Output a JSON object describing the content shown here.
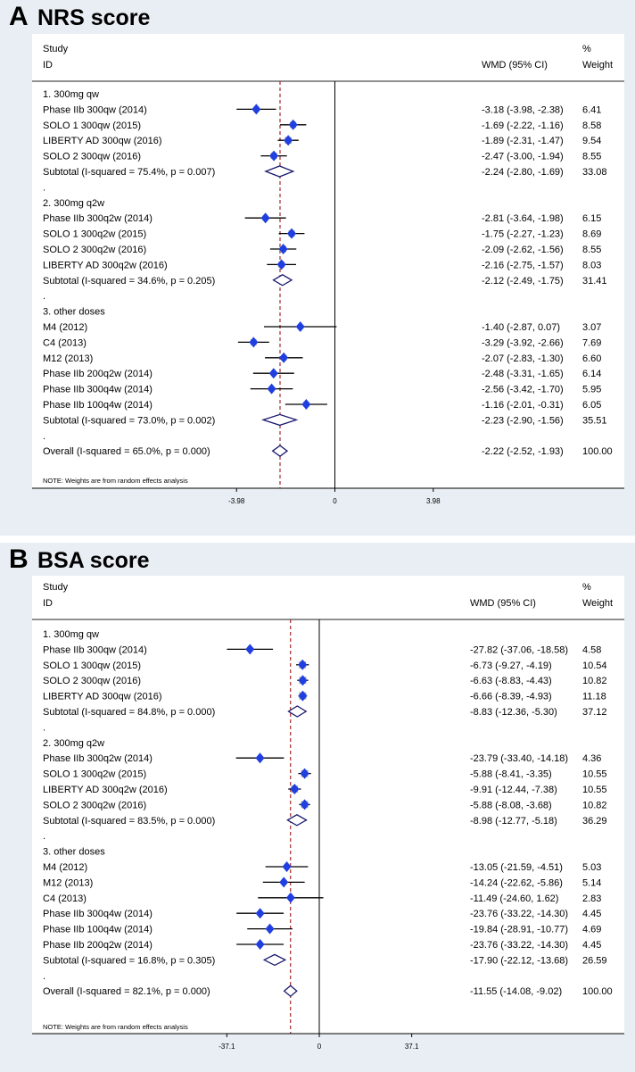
{
  "chart_data": [
    {
      "type": "forest",
      "panel_letter": "A",
      "title": "NRS score",
      "header": {
        "study": "Study",
        "id": "ID",
        "wmd": "WMD (95% CI)",
        "pct": "%",
        "weight": "Weight"
      },
      "axis": {
        "ticks": [
          {
            "value": -3.98,
            "label": "-3.98"
          },
          {
            "value": 0,
            "label": "0"
          },
          {
            "value": 3.98,
            "label": "3.98"
          }
        ],
        "xlim": [
          -7.2,
          7.2
        ]
      },
      "overall_effect": -2.22,
      "note": "NOTE: Weights are from random effects analysis",
      "rows": [
        {
          "kind": "group",
          "label": "1. 300mg qw"
        },
        {
          "kind": "study",
          "label": "Phase IIb 300qw (2014)",
          "est": -3.18,
          "lo": -3.98,
          "hi": -2.38,
          "weight": 6.41,
          "ci_text": "-3.18 (-3.98, -2.38)",
          "weight_text": "6.41"
        },
        {
          "kind": "study",
          "label": "SOLO 1 300qw (2015)",
          "est": -1.69,
          "lo": -2.22,
          "hi": -1.16,
          "weight": 8.58,
          "ci_text": "-1.69 (-2.22, -1.16)",
          "weight_text": "8.58"
        },
        {
          "kind": "study",
          "label": "LIBERTY AD 300qw (2016)",
          "est": -1.89,
          "lo": -2.31,
          "hi": -1.47,
          "weight": 9.54,
          "ci_text": "-1.89 (-2.31, -1.47)",
          "weight_text": "9.54"
        },
        {
          "kind": "study",
          "label": "SOLO 2 300qw (2016)",
          "est": -2.47,
          "lo": -3.0,
          "hi": -1.94,
          "weight": 8.55,
          "ci_text": "-2.47 (-3.00, -1.94)",
          "weight_text": "8.55"
        },
        {
          "kind": "subtotal",
          "label": "Subtotal  (I-squared = 75.4%, p = 0.007)",
          "est": -2.24,
          "lo": -2.8,
          "hi": -1.69,
          "ci_text": "-2.24 (-2.80, -1.69)",
          "weight_text": "33.08"
        },
        {
          "kind": "dot",
          "label": "."
        },
        {
          "kind": "group",
          "label": "2. 300mg q2w"
        },
        {
          "kind": "study",
          "label": "Phase IIb 300q2w (2014)",
          "est": -2.81,
          "lo": -3.64,
          "hi": -1.98,
          "weight": 6.15,
          "ci_text": "-2.81 (-3.64, -1.98)",
          "weight_text": "6.15"
        },
        {
          "kind": "study",
          "label": "SOLO 1 300q2w (2015)",
          "est": -1.75,
          "lo": -2.27,
          "hi": -1.23,
          "weight": 8.69,
          "ci_text": "-1.75 (-2.27, -1.23)",
          "weight_text": "8.69"
        },
        {
          "kind": "study",
          "label": "SOLO 2 300q2w (2016)",
          "est": -2.09,
          "lo": -2.62,
          "hi": -1.56,
          "weight": 8.55,
          "ci_text": "-2.09 (-2.62, -1.56)",
          "weight_text": "8.55"
        },
        {
          "kind": "study",
          "label": "LIBERTY AD 300q2w (2016)",
          "est": -2.16,
          "lo": -2.75,
          "hi": -1.57,
          "weight": 8.03,
          "ci_text": "-2.16 (-2.75, -1.57)",
          "weight_text": "8.03"
        },
        {
          "kind": "subtotal",
          "label": "Subtotal  (I-squared = 34.6%, p = 0.205)",
          "est": -2.12,
          "lo": -2.49,
          "hi": -1.75,
          "ci_text": "-2.12 (-2.49, -1.75)",
          "weight_text": "31.41"
        },
        {
          "kind": "dot",
          "label": "."
        },
        {
          "kind": "group",
          "label": "3. other doses"
        },
        {
          "kind": "study",
          "label": "M4 (2012)",
          "est": -1.4,
          "lo": -2.87,
          "hi": 0.07,
          "weight": 3.07,
          "ci_text": "-1.40 (-2.87, 0.07)",
          "weight_text": "3.07"
        },
        {
          "kind": "study",
          "label": "C4 (2013)",
          "est": -3.29,
          "lo": -3.92,
          "hi": -2.66,
          "weight": 7.69,
          "ci_text": "-3.29 (-3.92, -2.66)",
          "weight_text": "7.69"
        },
        {
          "kind": "study",
          "label": "M12 (2013)",
          "est": -2.07,
          "lo": -2.83,
          "hi": -1.3,
          "weight": 6.6,
          "ci_text": "-2.07 (-2.83, -1.30)",
          "weight_text": "6.60"
        },
        {
          "kind": "study",
          "label": "Phase IIb 200q2w (2014)",
          "est": -2.48,
          "lo": -3.31,
          "hi": -1.65,
          "weight": 6.14,
          "ci_text": "-2.48 (-3.31, -1.65)",
          "weight_text": "6.14"
        },
        {
          "kind": "study",
          "label": "Phase IIb 300q4w (2014)",
          "est": -2.56,
          "lo": -3.42,
          "hi": -1.7,
          "weight": 5.95,
          "ci_text": "-2.56 (-3.42, -1.70)",
          "weight_text": "5.95"
        },
        {
          "kind": "study",
          "label": "Phase IIb 100q4w (2014)",
          "est": -1.16,
          "lo": -2.01,
          "hi": -0.31,
          "weight": 6.05,
          "ci_text": "-1.16 (-2.01, -0.31)",
          "weight_text": "6.05"
        },
        {
          "kind": "subtotal",
          "label": "Subtotal  (I-squared = 73.0%, p = 0.002)",
          "est": -2.23,
          "lo": -2.9,
          "hi": -1.56,
          "ci_text": "-2.23 (-2.90, -1.56)",
          "weight_text": "35.51"
        },
        {
          "kind": "dot",
          "label": "."
        },
        {
          "kind": "overall",
          "label": "Overall  (I-squared = 65.0%, p = 0.000)",
          "est": -2.22,
          "lo": -2.52,
          "hi": -1.93,
          "ci_text": "-2.22 (-2.52, -1.93)",
          "weight_text": "100.00"
        }
      ]
    },
    {
      "type": "forest",
      "panel_letter": "B",
      "title": "BSA score",
      "header": {
        "study": "Study",
        "id": "ID",
        "wmd": "WMD (95% CI)",
        "pct": "%",
        "weight": "Weight"
      },
      "axis": {
        "ticks": [
          {
            "value": -37.1,
            "label": "-37.1"
          },
          {
            "value": 0,
            "label": "0"
          },
          {
            "value": 37.1,
            "label": "37.1"
          }
        ],
        "xlim": [
          -68,
          68
        ]
      },
      "overall_effect": -11.55,
      "note": "NOTE: Weights are from random effects analysis",
      "rows": [
        {
          "kind": "group",
          "label": "1. 300mg qw"
        },
        {
          "kind": "study",
          "label": "Phase IIb 300qw (2014)",
          "est": -27.82,
          "lo": -37.06,
          "hi": -18.58,
          "weight": 4.58,
          "ci_text": "-27.82 (-37.06, -18.58)",
          "weight_text": "4.58"
        },
        {
          "kind": "study",
          "label": "SOLO 1 300qw (2015)",
          "est": -6.73,
          "lo": -9.27,
          "hi": -4.19,
          "weight": 10.54,
          "ci_text": "-6.73 (-9.27, -4.19)",
          "weight_text": "10.54"
        },
        {
          "kind": "study",
          "label": "SOLO 2 300qw (2016)",
          "est": -6.63,
          "lo": -8.83,
          "hi": -4.43,
          "weight": 10.82,
          "ci_text": "-6.63 (-8.83, -4.43)",
          "weight_text": "10.82"
        },
        {
          "kind": "study",
          "label": "LIBERTY AD 300qw (2016)",
          "est": -6.66,
          "lo": -8.39,
          "hi": -4.93,
          "weight": 11.18,
          "ci_text": "-6.66 (-8.39, -4.93)",
          "weight_text": "11.18"
        },
        {
          "kind": "subtotal",
          "label": "Subtotal  (I-squared = 84.8%, p = 0.000)",
          "est": -8.83,
          "lo": -12.36,
          "hi": -5.3,
          "ci_text": "-8.83 (-12.36, -5.30)",
          "weight_text": "37.12"
        },
        {
          "kind": "dot",
          "label": "."
        },
        {
          "kind": "group",
          "label": "2. 300mg q2w"
        },
        {
          "kind": "study",
          "label": "Phase IIb 300q2w (2014)",
          "est": -23.79,
          "lo": -33.4,
          "hi": -14.18,
          "weight": 4.36,
          "ci_text": "-23.79 (-33.40, -14.18)",
          "weight_text": "4.36"
        },
        {
          "kind": "study",
          "label": "SOLO 1 300q2w (2015)",
          "est": -5.88,
          "lo": -8.41,
          "hi": -3.35,
          "weight": 10.55,
          "ci_text": "-5.88 (-8.41, -3.35)",
          "weight_text": "10.55"
        },
        {
          "kind": "study",
          "label": "LIBERTY AD 300q2w (2016)",
          "est": -9.91,
          "lo": -12.44,
          "hi": -7.38,
          "weight": 10.55,
          "ci_text": "-9.91 (-12.44, -7.38)",
          "weight_text": "10.55"
        },
        {
          "kind": "study",
          "label": "SOLO 2 300q2w (2016)",
          "est": -5.88,
          "lo": -8.08,
          "hi": -3.68,
          "weight": 10.82,
          "ci_text": "-5.88 (-8.08, -3.68)",
          "weight_text": "10.82"
        },
        {
          "kind": "subtotal",
          "label": "Subtotal  (I-squared = 83.5%, p = 0.000)",
          "est": -8.98,
          "lo": -12.77,
          "hi": -5.18,
          "ci_text": "-8.98 (-12.77, -5.18)",
          "weight_text": "36.29"
        },
        {
          "kind": "dot",
          "label": "."
        },
        {
          "kind": "group",
          "label": "3. other doses"
        },
        {
          "kind": "study",
          "label": "M4 (2012)",
          "est": -13.05,
          "lo": -21.59,
          "hi": -4.51,
          "weight": 5.03,
          "ci_text": "-13.05 (-21.59, -4.51)",
          "weight_text": "5.03"
        },
        {
          "kind": "study",
          "label": "M12 (2013)",
          "est": -14.24,
          "lo": -22.62,
          "hi": -5.86,
          "weight": 5.14,
          "ci_text": "-14.24 (-22.62, -5.86)",
          "weight_text": "5.14"
        },
        {
          "kind": "study",
          "label": "C4 (2013)",
          "est": -11.49,
          "lo": -24.6,
          "hi": 1.62,
          "weight": 2.83,
          "ci_text": "-11.49 (-24.60, 1.62)",
          "weight_text": "2.83"
        },
        {
          "kind": "study",
          "label": "Phase IIb 300q4w (2014)",
          "est": -23.76,
          "lo": -33.22,
          "hi": -14.3,
          "weight": 4.45,
          "ci_text": "-23.76 (-33.22, -14.30)",
          "weight_text": "4.45"
        },
        {
          "kind": "study",
          "label": "Phase IIb 100q4w (2014)",
          "est": -19.84,
          "lo": -28.91,
          "hi": -10.77,
          "weight": 4.69,
          "ci_text": "-19.84 (-28.91, -10.77)",
          "weight_text": "4.69"
        },
        {
          "kind": "study",
          "label": "Phase IIb 200q2w (2014)",
          "est": -23.76,
          "lo": -33.22,
          "hi": -14.3,
          "weight": 4.45,
          "ci_text": "-23.76 (-33.22, -14.30)",
          "weight_text": "4.45"
        },
        {
          "kind": "subtotal",
          "label": "Subtotal  (I-squared = 16.8%, p = 0.305)",
          "est": -17.9,
          "lo": -22.12,
          "hi": -13.68,
          "ci_text": "-17.90 (-22.12, -13.68)",
          "weight_text": "26.59"
        },
        {
          "kind": "dot",
          "label": "."
        },
        {
          "kind": "overall",
          "label": "Overall  (I-squared = 82.1%, p = 0.000)",
          "est": -11.55,
          "lo": -14.08,
          "hi": -9.02,
          "ci_text": "-11.55 (-14.08, -9.02)",
          "weight_text": "100.00"
        }
      ]
    }
  ],
  "colors": {
    "background": "#e8eef3",
    "plot_area": "#ffffff",
    "point": "#1f3fe0",
    "weight_box": "#a9a9a9",
    "diamond": "#1a1a6e",
    "reference_line": "#a52a2a"
  }
}
